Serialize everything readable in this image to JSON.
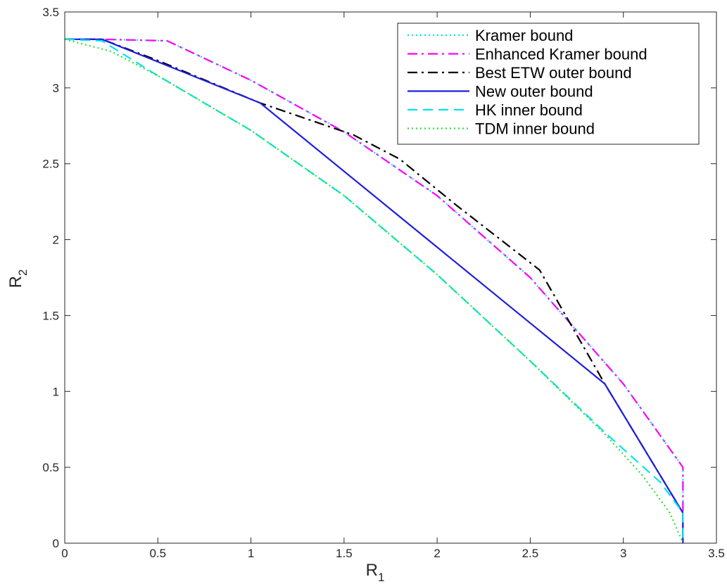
{
  "chart_data": {
    "type": "line",
    "xlabel": "R",
    "xlabel_sub": "1",
    "ylabel": "R",
    "ylabel_sub": "2",
    "xlim": [
      0,
      3.5
    ],
    "ylim": [
      0,
      3.5
    ],
    "xticks": [
      "0",
      "0.5",
      "1",
      "1.5",
      "2",
      "2.5",
      "3",
      "3.5"
    ],
    "yticks": [
      "0",
      "0.5",
      "1",
      "1.5",
      "2",
      "2.5",
      "3",
      "3.5"
    ],
    "grid": false,
    "legend_position": "top-right",
    "series": [
      {
        "name": "Kramer bound",
        "color": "#00e5ee",
        "style": "dotted",
        "points": [
          [
            0,
            3.32
          ],
          [
            0.2,
            3.32
          ],
          [
            0.55,
            3.31
          ],
          [
            1.0,
            3.05
          ],
          [
            1.5,
            2.71
          ],
          [
            2.0,
            2.29
          ],
          [
            2.5,
            1.75
          ],
          [
            3.0,
            1.05
          ],
          [
            3.32,
            0.5
          ],
          [
            3.32,
            0
          ]
        ]
      },
      {
        "name": "Enhanced Kramer bound",
        "color": "#ff00ff",
        "style": "dashdot",
        "points": [
          [
            0,
            3.32
          ],
          [
            0.2,
            3.32
          ],
          [
            0.55,
            3.31
          ],
          [
            1.0,
            3.05
          ],
          [
            1.5,
            2.71
          ],
          [
            2.0,
            2.29
          ],
          [
            2.5,
            1.75
          ],
          [
            3.0,
            1.05
          ],
          [
            3.32,
            0.5
          ],
          [
            3.32,
            0
          ]
        ]
      },
      {
        "name": "Best ETW outer bound",
        "color": "#000000",
        "style": "dashdot",
        "points": [
          [
            0,
            3.32
          ],
          [
            0.2,
            3.32
          ],
          [
            0.5,
            3.18
          ],
          [
            1.05,
            2.9
          ],
          [
            1.55,
            2.69
          ],
          [
            1.8,
            2.53
          ],
          [
            2.1,
            2.23
          ],
          [
            2.55,
            1.8
          ],
          [
            2.9,
            1.05
          ],
          [
            3.32,
            0.2
          ],
          [
            3.32,
            0
          ]
        ]
      },
      {
        "name": "New outer bound",
        "color": "#1f1fdc",
        "style": "solid",
        "points": [
          [
            0,
            3.32
          ],
          [
            0.2,
            3.32
          ],
          [
            1.05,
            2.9
          ],
          [
            2.9,
            1.05
          ],
          [
            3.32,
            0.2
          ],
          [
            3.32,
            0
          ]
        ]
      },
      {
        "name": "HK inner bound",
        "color": "#00e5ee",
        "style": "dashed",
        "points": [
          [
            0,
            3.32
          ],
          [
            0.2,
            3.31
          ],
          [
            0.5,
            3.08
          ],
          [
            1.0,
            2.72
          ],
          [
            1.5,
            2.29
          ],
          [
            2.0,
            1.77
          ],
          [
            2.5,
            1.2
          ],
          [
            2.9,
            0.73
          ],
          [
            3.2,
            0.4
          ],
          [
            3.32,
            0.2
          ],
          [
            3.32,
            0
          ]
        ]
      },
      {
        "name": "TDM inner bound",
        "color": "#33dd33",
        "style": "dotted",
        "points": [
          [
            0,
            3.32
          ],
          [
            0.25,
            3.24
          ],
          [
            0.5,
            3.08
          ],
          [
            1.0,
            2.72
          ],
          [
            1.5,
            2.29
          ],
          [
            2.0,
            1.77
          ],
          [
            2.5,
            1.2
          ],
          [
            2.9,
            0.72
          ],
          [
            3.1,
            0.45
          ],
          [
            3.25,
            0.2
          ],
          [
            3.32,
            0
          ]
        ]
      }
    ]
  }
}
